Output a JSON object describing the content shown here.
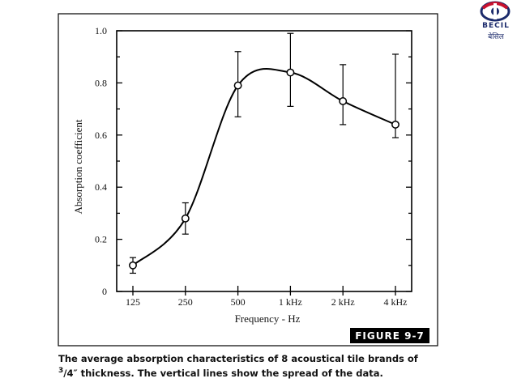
{
  "logo": {
    "text_en": "BECIL",
    "text_hi": "बेसिल",
    "accent": "#c8102e",
    "brand": "#1b2a6b"
  },
  "figure_label": "FIGURE 9-7",
  "caption": {
    "before": "The average absorption characteristics of 8 acoustical tile brands of ",
    "frac_num": "3",
    "frac_den": "/4",
    "after": "″ thickness. The vertical lines show the spread of the data."
  },
  "chart_data": {
    "type": "line",
    "smooth": true,
    "xlabel": "Frequency - Hz",
    "ylabel": "Absorption coefficient",
    "categories": [
      "125",
      "250",
      "500",
      "1 kHz",
      "2 kHz",
      "4 kHz"
    ],
    "yticks": [
      "0",
      "0.2",
      "0.4",
      "0.6",
      "0.8",
      "1.0"
    ],
    "ylim": [
      0,
      1.0
    ],
    "values": [
      0.1,
      0.28,
      0.79,
      0.84,
      0.73,
      0.64
    ],
    "error_low": [
      0.07,
      0.22,
      0.67,
      0.71,
      0.64,
      0.59
    ],
    "error_high": [
      0.13,
      0.34,
      0.92,
      0.99,
      0.87,
      0.91
    ],
    "grid": false,
    "line_color": "#000000"
  }
}
